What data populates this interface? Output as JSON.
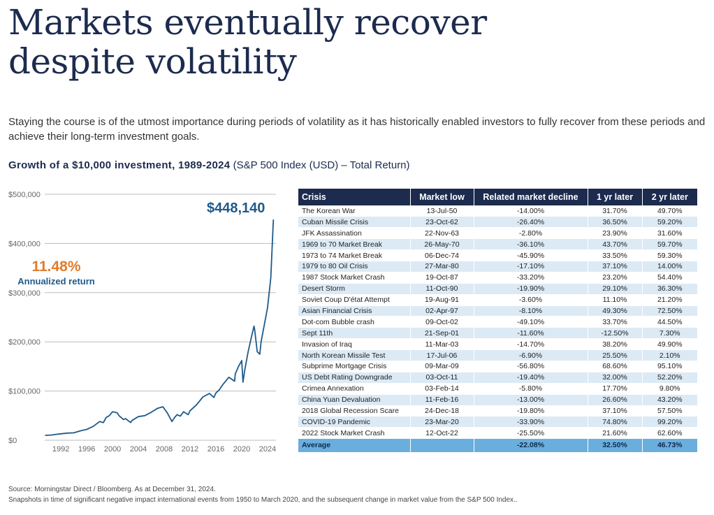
{
  "header": {
    "title_line1": "Markets eventually recover",
    "title_line2": "despite volatility",
    "intro": "Staying the course is of the utmost importance during periods of volatility as it has historically enabled investors to fully recover from these periods and achieve their long-term investment goals.",
    "chart_title_bold": "Growth of a $10,000 investment, 1989-2024",
    "chart_title_rest": "(S&P 500 Index (USD) – Total Return)"
  },
  "callouts": {
    "final_value": "$448,140",
    "annualized_rate": "11.48%",
    "annualized_label": "Annualized return"
  },
  "colors": {
    "title": "#1c2b4e",
    "line": "#1e5a8a",
    "accent_orange": "#e07b2b",
    "table_header": "#1c2b4e",
    "table_stripe": "#dceaf5",
    "average_row": "#6aaede"
  },
  "chart_data": {
    "type": "line",
    "title": "Growth of a $10,000 investment, 1989-2024",
    "xlabel": "",
    "ylabel": "",
    "xlim": [
      1989.5,
      2025.3
    ],
    "ylim": [
      0,
      500000
    ],
    "y_ticks": [
      {
        "value": 0,
        "label": "$0"
      },
      {
        "value": 100000,
        "label": "$100,000"
      },
      {
        "value": 200000,
        "label": "$200,000"
      },
      {
        "value": 300000,
        "label": "$300,000"
      },
      {
        "value": 400000,
        "label": "$400,000"
      },
      {
        "value": 500000,
        "label": "$500,000"
      }
    ],
    "x_ticks": [
      {
        "value": 1992,
        "label": "1992"
      },
      {
        "value": 1996,
        "label": "1996"
      },
      {
        "value": 2000,
        "label": "2000"
      },
      {
        "value": 2004,
        "label": "2004"
      },
      {
        "value": 2008,
        "label": "2008"
      },
      {
        "value": 2012,
        "label": "2012"
      },
      {
        "value": 2016,
        "label": "2016"
      },
      {
        "value": 2020,
        "label": "2020"
      },
      {
        "value": 2024,
        "label": "2024"
      }
    ],
    "grid": true,
    "series": [
      {
        "name": "S&P 500 Index (USD) – Total Return",
        "x": [
          1989.6,
          1990.5,
          1991,
          1992,
          1993,
          1994,
          1995,
          1996,
          1997,
          1998,
          1998.6,
          1999,
          1999.5,
          2000,
          2000.7,
          2001,
          2001.7,
          2002,
          2002.8,
          2003,
          2004,
          2005,
          2006,
          2007,
          2007.8,
          2008.5,
          2009.2,
          2009.6,
          2010,
          2010.5,
          2011,
          2011.7,
          2012,
          2013,
          2014,
          2015,
          2015.7,
          2016,
          2016.5,
          2017,
          2018,
          2018.9,
          2019,
          2019.5,
          2020,
          2020.2,
          2020.5,
          2021,
          2021.5,
          2021.9,
          2022,
          2022.4,
          2022.8,
          2023,
          2023.5,
          2024,
          2024.5,
          2024.9
        ],
        "values": [
          10000,
          10500,
          11500,
          13000,
          14500,
          15000,
          19000,
          22000,
          28000,
          38000,
          36000,
          46000,
          50000,
          58000,
          56000,
          50000,
          42000,
          44000,
          36000,
          40000,
          48000,
          50000,
          57000,
          65000,
          68000,
          55000,
          38000,
          46000,
          52000,
          49000,
          58000,
          52000,
          60000,
          72000,
          88000,
          95000,
          87000,
          96000,
          102000,
          112000,
          128000,
          120000,
          135000,
          150000,
          162000,
          118000,
          145000,
          180000,
          210000,
          232000,
          225000,
          180000,
          175000,
          200000,
          235000,
          270000,
          330000,
          448140
        ]
      }
    ]
  },
  "table": {
    "headers": [
      "Crisis",
      "Market low",
      "Related market decline",
      "1 yr later",
      "2 yr later"
    ],
    "rows": [
      [
        "The Korean War",
        "13-Jul-50",
        "-14.00%",
        "31.70%",
        "49.70%"
      ],
      [
        "Cuban Missile Crisis",
        "23-Oct-62",
        "-26.40%",
        "36.50%",
        "59.20%"
      ],
      [
        "JFK Assassination",
        "22-Nov-63",
        "-2.80%",
        "23.90%",
        "31.60%"
      ],
      [
        "1969 to 70 Market Break",
        "26-May-70",
        "-36.10%",
        "43.70%",
        "59.70%"
      ],
      [
        "1973 to 74 Market Break",
        "06-Dec-74",
        "-45.90%",
        "33.50%",
        "59.30%"
      ],
      [
        "1979 to 80 Oil Crisis",
        "27-Mar-80",
        "-17.10%",
        "37.10%",
        "14.00%"
      ],
      [
        "1987 Stock Market Crash",
        "19-Oct-87",
        "-33.20%",
        "23.20%",
        "54.40%"
      ],
      [
        "Desert Storm",
        "11-Oct-90",
        "-19.90%",
        "29.10%",
        "36.30%"
      ],
      [
        "Soviet Coup D'état Attempt",
        "19-Aug-91",
        "-3.60%",
        "11.10%",
        "21.20%"
      ],
      [
        "Asian Financial Crisis",
        "02-Apr-97",
        "-8.10%",
        "49.30%",
        "72.50%"
      ],
      [
        "Dot-com Bubble crash",
        "09-Oct-02",
        "-49.10%",
        "33.70%",
        "44.50%"
      ],
      [
        "Sept 11th",
        "21-Sep-01",
        "-11.60%",
        "-12.50%",
        "7.30%"
      ],
      [
        "Invasion of Iraq",
        "11-Mar-03",
        "-14.70%",
        "38.20%",
        "49.90%"
      ],
      [
        "North Korean Missile Test",
        "17-Jul-06",
        "-6.90%",
        "25.50%",
        "2.10%"
      ],
      [
        "Subprime Mortgage Crisis",
        "09-Mar-09",
        "-56.80%",
        "68.60%",
        "95.10%"
      ],
      [
        "US Debt Rating Downgrade",
        "03-Oct-11",
        "-19.40%",
        "32.00%",
        "52.20%"
      ],
      [
        "Crimea Annexation",
        "03-Feb-14",
        "-5.80%",
        "17.70%",
        "9.80%"
      ],
      [
        "China Yuan Devaluation",
        "11-Feb-16",
        "-13.00%",
        "26.60%",
        "43.20%"
      ],
      [
        "2018 Global Recession Scare",
        "24-Dec-18",
        "-19.80%",
        "37.10%",
        "57.50%"
      ],
      [
        "COVID-19 Pandemic",
        "23-Mar-20",
        "-33.90%",
        "74.80%",
        "99.20%"
      ],
      [
        "2022 Stock Market Crash",
        "12-Oct-22",
        "-25.50%",
        "21.60%",
        "62.60%"
      ]
    ],
    "average": [
      "Average",
      "",
      "-22.08%",
      "32.50%",
      "46.73%"
    ]
  },
  "footer": {
    "source": "Source: Morningstar Direct / Bloomberg. As at December 31, 2024.",
    "note": "Snapshots in time of significant negative impact international events from 1950 to March 2020, and the subsequent change in market value from the S&P 500 Index.."
  }
}
